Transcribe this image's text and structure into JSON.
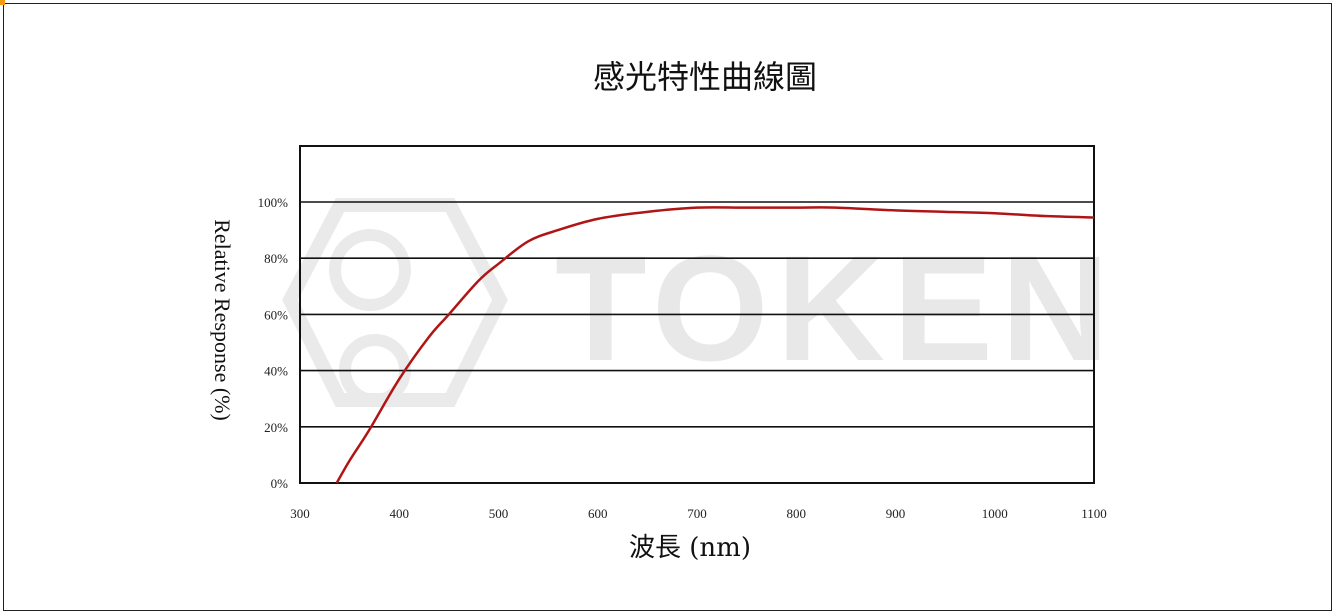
{
  "chart_data": {
    "type": "line",
    "title": "感光特性曲線圖",
    "xlabel": "波長 (nm)",
    "ylabel": "Relative Response (%)",
    "xlim": [
      300,
      1100
    ],
    "ylim": [
      0,
      100
    ],
    "xticks": [
      "300",
      "400",
      "500",
      "600",
      "700",
      "800",
      "900",
      "1000",
      "1100"
    ],
    "yticks": [
      "0%",
      "20%",
      "40%",
      "60%",
      "80%",
      "100%"
    ],
    "grid": "horizontal",
    "series": [
      {
        "color": "#b01515",
        "x": [
          337,
          350,
          370,
          400,
          430,
          450,
          480,
          500,
          530,
          560,
          600,
          650,
          700,
          750,
          800,
          840,
          900,
          950,
          1000,
          1050,
          1100
        ],
        "y": [
          0,
          8,
          19,
          37,
          52,
          60,
          72,
          78,
          86,
          90,
          94,
          96.5,
          98,
          98,
          98,
          98,
          97,
          96.5,
          96,
          95,
          94.5
        ]
      }
    ]
  },
  "watermark": {
    "text": "TOKEN"
  }
}
